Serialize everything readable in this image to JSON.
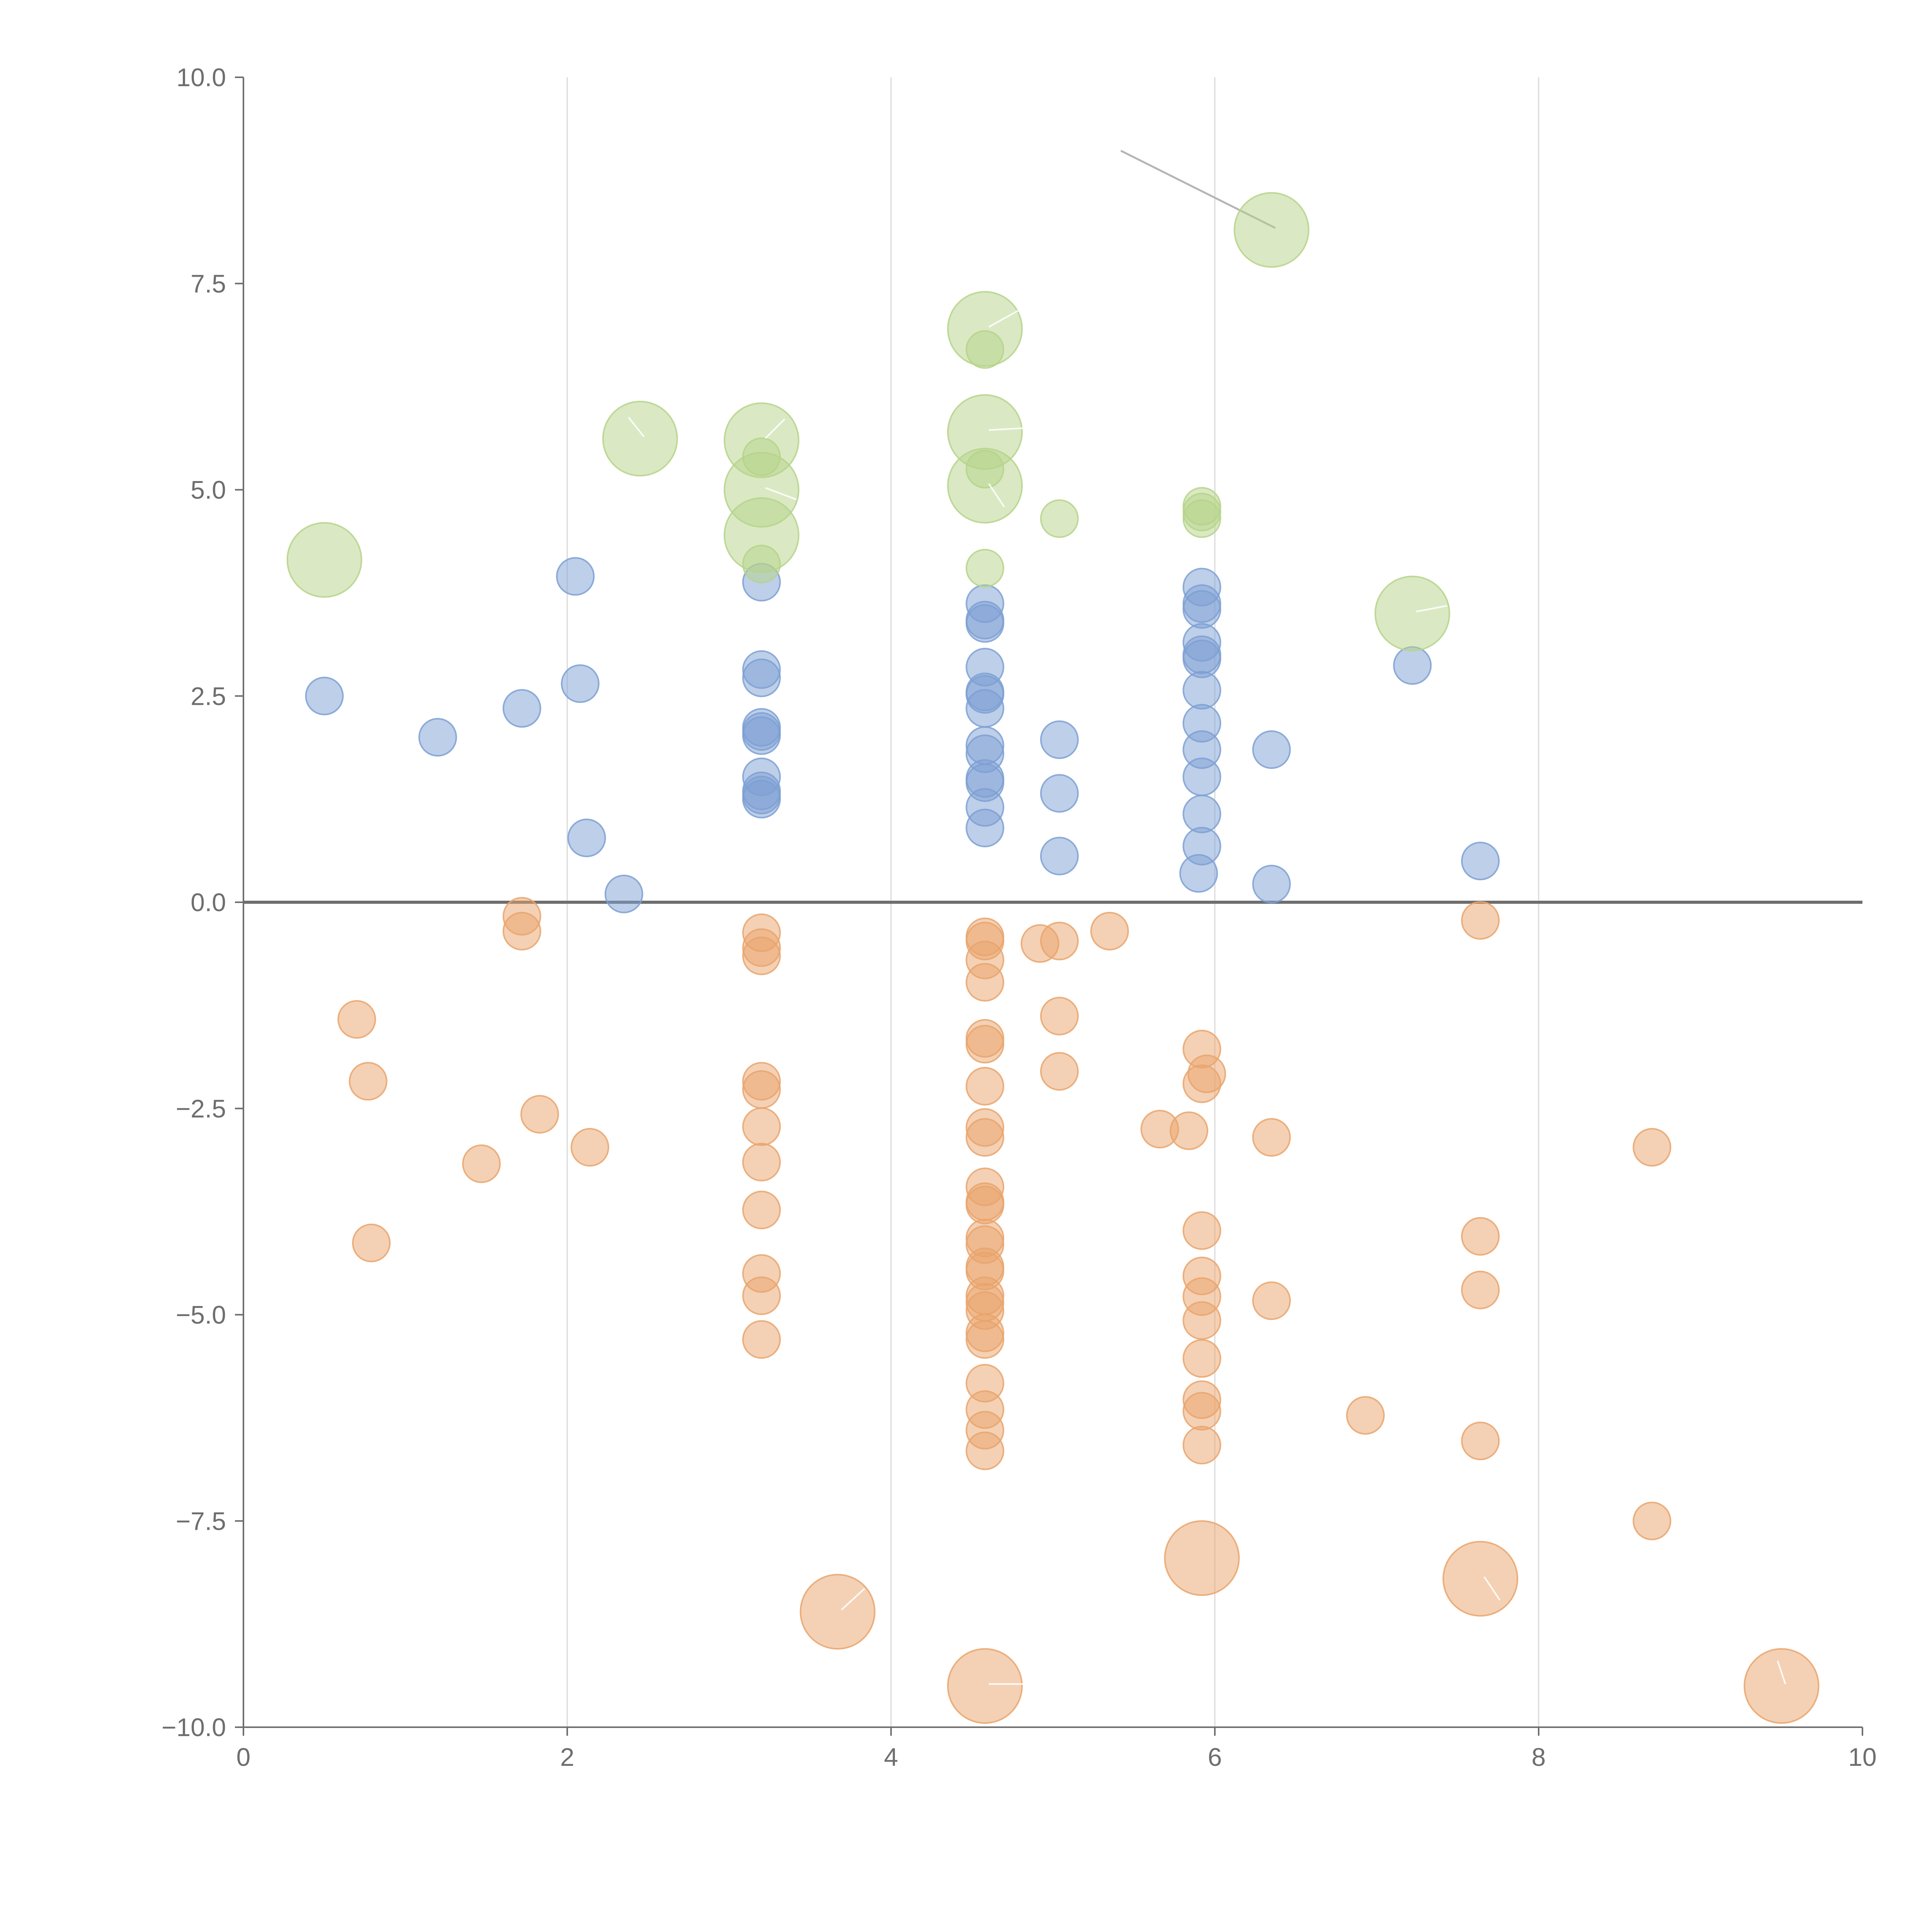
{
  "chart_data": {
    "type": "scatter",
    "title": "",
    "xlabel": "",
    "ylabel": "",
    "xlim": [
      0,
      10
    ],
    "ylim": [
      -10,
      10
    ],
    "x_ticks": [
      0,
      2,
      4,
      6,
      8,
      10
    ],
    "x_tick_labels": [
      "0",
      "2",
      "4",
      "6",
      "8",
      "10"
    ],
    "y_ticks": [
      -10,
      -7.5,
      -5,
      -2.5,
      0,
      2.5,
      5,
      7.5,
      10
    ],
    "y_tick_labels": [
      "−10.0",
      "−7.5",
      "−5.0",
      "−2.5",
      "0.0",
      "2.5",
      "5.0",
      "7.5",
      "10.0"
    ],
    "vertical_gridlines_at": [
      2,
      4,
      6,
      8
    ],
    "zero_line": 0,
    "colors": {
      "positive": "#7da0d3",
      "negative": "#e9a46c",
      "highlight": "#b6d38a",
      "axis": "#6e6e6e",
      "grid": "#dadada"
    },
    "series": [
      {
        "name": "positive",
        "color": "#7da0d3",
        "points": [
          [
            0.5,
            2.5
          ],
          [
            1.2,
            2.0
          ],
          [
            1.72,
            2.35
          ],
          [
            2.05,
            3.95
          ],
          [
            2.08,
            2.65
          ],
          [
            2.12,
            0.78
          ],
          [
            2.35,
            0.1
          ],
          [
            3.2,
            3.88
          ],
          [
            3.2,
            2.82
          ],
          [
            3.2,
            2.72
          ],
          [
            3.2,
            2.12
          ],
          [
            3.2,
            2.07
          ],
          [
            3.2,
            2.02
          ],
          [
            3.2,
            1.52
          ],
          [
            3.2,
            1.35
          ],
          [
            3.2,
            1.3
          ],
          [
            3.2,
            1.25
          ],
          [
            4.58,
            3.62
          ],
          [
            4.58,
            3.42
          ],
          [
            4.58,
            3.38
          ],
          [
            4.58,
            2.85
          ],
          [
            4.58,
            2.55
          ],
          [
            4.58,
            2.52
          ],
          [
            4.58,
            2.35
          ],
          [
            4.58,
            1.9
          ],
          [
            4.58,
            1.8
          ],
          [
            4.58,
            1.5
          ],
          [
            4.58,
            1.45
          ],
          [
            4.58,
            1.15
          ],
          [
            4.58,
            0.9
          ],
          [
            5.04,
            1.97
          ],
          [
            5.04,
            1.32
          ],
          [
            5.04,
            0.56
          ],
          [
            5.92,
            3.82
          ],
          [
            5.92,
            3.62
          ],
          [
            5.92,
            3.55
          ],
          [
            5.92,
            3.15
          ],
          [
            5.92,
            3.0
          ],
          [
            5.92,
            2.95
          ],
          [
            5.92,
            2.57
          ],
          [
            5.92,
            2.17
          ],
          [
            5.92,
            1.85
          ],
          [
            5.92,
            1.52
          ],
          [
            5.92,
            1.07
          ],
          [
            5.92,
            0.68
          ],
          [
            5.9,
            0.35
          ],
          [
            6.35,
            1.85
          ],
          [
            6.35,
            0.22
          ],
          [
            7.22,
            2.87
          ],
          [
            7.64,
            0.5
          ]
        ]
      },
      {
        "name": "negative",
        "color": "#e9a46c",
        "points": [
          [
            0.7,
            -1.42
          ],
          [
            0.77,
            -2.17
          ],
          [
            0.79,
            -4.13
          ],
          [
            1.47,
            -3.17
          ],
          [
            1.72,
            -0.17
          ],
          [
            1.72,
            -0.35
          ],
          [
            1.83,
            -2.57
          ],
          [
            2.14,
            -2.97
          ],
          [
            3.2,
            -0.37
          ],
          [
            3.2,
            -0.55
          ],
          [
            3.2,
            -0.65
          ],
          [
            3.2,
            -2.17
          ],
          [
            3.2,
            -2.27
          ],
          [
            3.2,
            -2.72
          ],
          [
            3.2,
            -3.15
          ],
          [
            3.2,
            -3.73
          ],
          [
            3.2,
            -4.5
          ],
          [
            3.2,
            -4.77
          ],
          [
            3.2,
            -5.3
          ],
          [
            4.58,
            -0.42
          ],
          [
            4.58,
            -0.47
          ],
          [
            4.58,
            -0.7
          ],
          [
            4.58,
            -0.97
          ],
          [
            4.58,
            -1.65
          ],
          [
            4.58,
            -1.72
          ],
          [
            4.58,
            -2.23
          ],
          [
            4.58,
            -2.73
          ],
          [
            4.58,
            -2.85
          ],
          [
            4.58,
            -3.45
          ],
          [
            4.58,
            -3.63
          ],
          [
            4.58,
            -3.67
          ],
          [
            4.58,
            -4.07
          ],
          [
            4.58,
            -4.15
          ],
          [
            4.58,
            -4.42
          ],
          [
            4.58,
            -4.47
          ],
          [
            4.58,
            -4.77
          ],
          [
            4.58,
            -4.85
          ],
          [
            4.58,
            -4.95
          ],
          [
            4.58,
            -5.22
          ],
          [
            4.58,
            -5.3
          ],
          [
            4.58,
            -5.83
          ],
          [
            4.58,
            -6.15
          ],
          [
            4.58,
            -6.4
          ],
          [
            4.58,
            -6.65
          ],
          [
            4.92,
            -0.5
          ],
          [
            5.04,
            -0.47
          ],
          [
            5.04,
            -1.38
          ],
          [
            5.04,
            -2.05
          ],
          [
            5.35,
            -0.35
          ],
          [
            5.66,
            -2.75
          ],
          [
            5.84,
            -2.77
          ],
          [
            5.92,
            -1.78
          ],
          [
            5.95,
            -2.08
          ],
          [
            5.92,
            -2.2
          ],
          [
            5.92,
            -3.98
          ],
          [
            5.92,
            -4.53
          ],
          [
            5.92,
            -4.78
          ],
          [
            5.92,
            -5.07
          ],
          [
            5.92,
            -5.53
          ],
          [
            5.92,
            -6.03
          ],
          [
            5.92,
            -6.17
          ],
          [
            5.92,
            -6.58
          ],
          [
            6.35,
            -2.85
          ],
          [
            6.35,
            -4.83
          ],
          [
            6.93,
            -6.22
          ],
          [
            7.64,
            -0.22
          ],
          [
            7.64,
            -4.05
          ],
          [
            7.64,
            -4.7
          ],
          [
            7.64,
            -6.53
          ],
          [
            8.7,
            -2.97
          ],
          [
            8.7,
            -7.5
          ]
        ]
      },
      {
        "name": "highlight",
        "color": "#b6d38a",
        "points": [
          [
            3.2,
            5.4
          ],
          [
            3.2,
            4.1
          ],
          [
            4.58,
            6.7
          ],
          [
            4.58,
            5.25
          ],
          [
            4.58,
            4.05
          ],
          [
            5.04,
            4.65
          ],
          [
            5.92,
            4.8
          ],
          [
            5.92,
            4.73
          ],
          [
            5.92,
            4.65
          ]
        ]
      }
    ],
    "large_points": [
      {
        "series": "highlight",
        "x": 0.5,
        "y": 4.15
      },
      {
        "series": "highlight",
        "x": 2.45,
        "y": 5.62
      },
      {
        "series": "highlight",
        "x": 3.2,
        "y": 5.6
      },
      {
        "series": "highlight",
        "x": 3.2,
        "y": 5.0
      },
      {
        "series": "highlight",
        "x": 3.2,
        "y": 4.45
      },
      {
        "series": "highlight",
        "x": 4.58,
        "y": 6.95
      },
      {
        "series": "highlight",
        "x": 4.58,
        "y": 5.7
      },
      {
        "series": "highlight",
        "x": 4.58,
        "y": 5.05
      },
      {
        "series": "highlight",
        "x": 6.35,
        "y": 8.15
      },
      {
        "series": "highlight",
        "x": 7.22,
        "y": 3.5
      },
      {
        "series": "negative",
        "x": 3.67,
        "y": -8.6
      },
      {
        "series": "negative",
        "x": 4.58,
        "y": -9.5
      },
      {
        "series": "negative",
        "x": 5.92,
        "y": -7.95
      },
      {
        "series": "negative",
        "x": 7.64,
        "y": -8.2
      },
      {
        "series": "negative",
        "x": 9.5,
        "y": -9.5
      }
    ]
  }
}
